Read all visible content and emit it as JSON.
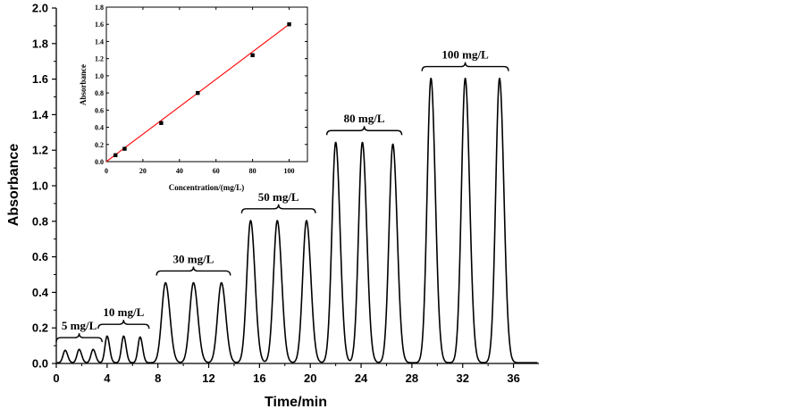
{
  "chart_data": [
    {
      "type": "line",
      "xlabel": "Time/min",
      "ylabel": "Absorbance",
      "xlim": [
        0,
        38
      ],
      "ylim": [
        0,
        2.0
      ],
      "x_ticks": [
        "0",
        "4",
        "8",
        "12",
        "16",
        "20",
        "24",
        "28",
        "32",
        "36"
      ],
      "y_ticks": [
        "0.0",
        "0.2",
        "0.4",
        "0.6",
        "0.8",
        "1.0",
        "1.2",
        "1.4",
        "1.6",
        "1.8",
        "2.0"
      ],
      "peak_groups": [
        {
          "label": "5 mg/L",
          "peaks": [
            {
              "t": 0.7,
              "a": 0.07
            },
            {
              "t": 1.8,
              "a": 0.075
            },
            {
              "t": 2.9,
              "a": 0.075
            }
          ]
        },
        {
          "label": "10 mg/L",
          "peaks": [
            {
              "t": 4.0,
              "a": 0.15
            },
            {
              "t": 5.3,
              "a": 0.15
            },
            {
              "t": 6.6,
              "a": 0.145
            }
          ]
        },
        {
          "label": "30 mg/L",
          "peaks": [
            {
              "t": 8.6,
              "a": 0.45
            },
            {
              "t": 10.8,
              "a": 0.45
            },
            {
              "t": 13.0,
              "a": 0.45
            }
          ]
        },
        {
          "label": "50 mg/L",
          "peaks": [
            {
              "t": 15.3,
              "a": 0.8
            },
            {
              "t": 17.4,
              "a": 0.8
            },
            {
              "t": 19.7,
              "a": 0.8
            }
          ]
        },
        {
          "label": "80 mg/L",
          "peaks": [
            {
              "t": 22.0,
              "a": 1.24
            },
            {
              "t": 24.1,
              "a": 1.24
            },
            {
              "t": 26.5,
              "a": 1.23
            }
          ]
        },
        {
          "label": "100 mg/L",
          "peaks": [
            {
              "t": 29.5,
              "a": 1.6
            },
            {
              "t": 32.2,
              "a": 1.6
            },
            {
              "t": 34.9,
              "a": 1.6
            }
          ]
        }
      ]
    },
    {
      "type": "scatter",
      "xlabel": "Concentration/(mg/L)",
      "ylabel": "Absorbance",
      "xlim": [
        0,
        110
      ],
      "ylim": [
        0,
        1.8
      ],
      "x_ticks": [
        "0",
        "20",
        "40",
        "60",
        "80",
        "100"
      ],
      "y_ticks": [
        "0.0",
        "0.2",
        "0.4",
        "0.6",
        "0.8",
        "1.0",
        "1.2",
        "1.4",
        "1.6",
        "1.8"
      ],
      "points": [
        {
          "x": 5,
          "y": 0.075
        },
        {
          "x": 10,
          "y": 0.15
        },
        {
          "x": 30,
          "y": 0.45
        },
        {
          "x": 50,
          "y": 0.8
        },
        {
          "x": 80,
          "y": 1.24
        },
        {
          "x": 100,
          "y": 1.6
        }
      ],
      "fit_line": {
        "x": [
          0,
          100
        ],
        "y": [
          0.0,
          1.6
        ],
        "color": "#ff0000"
      }
    }
  ]
}
